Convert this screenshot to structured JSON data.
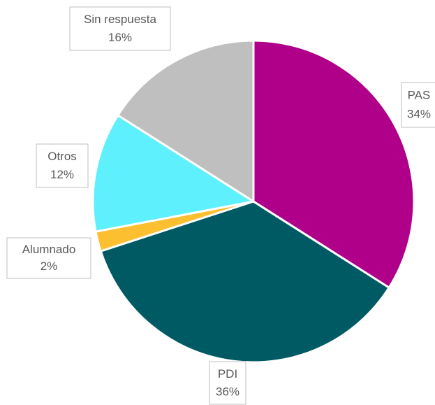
{
  "chart_data": {
    "type": "pie",
    "categories": [
      "PAS",
      "PDI",
      "Alumnado",
      "Otros",
      "Sin respuesta"
    ],
    "values": [
      34,
      36,
      2,
      12,
      16
    ],
    "value_labels": [
      "34%",
      "36%",
      "2%",
      "12%",
      "16%"
    ],
    "colors": [
      "#b0008a",
      "#005a64",
      "#fbbf2f",
      "#5ef0fc",
      "#bfbfbf"
    ]
  }
}
